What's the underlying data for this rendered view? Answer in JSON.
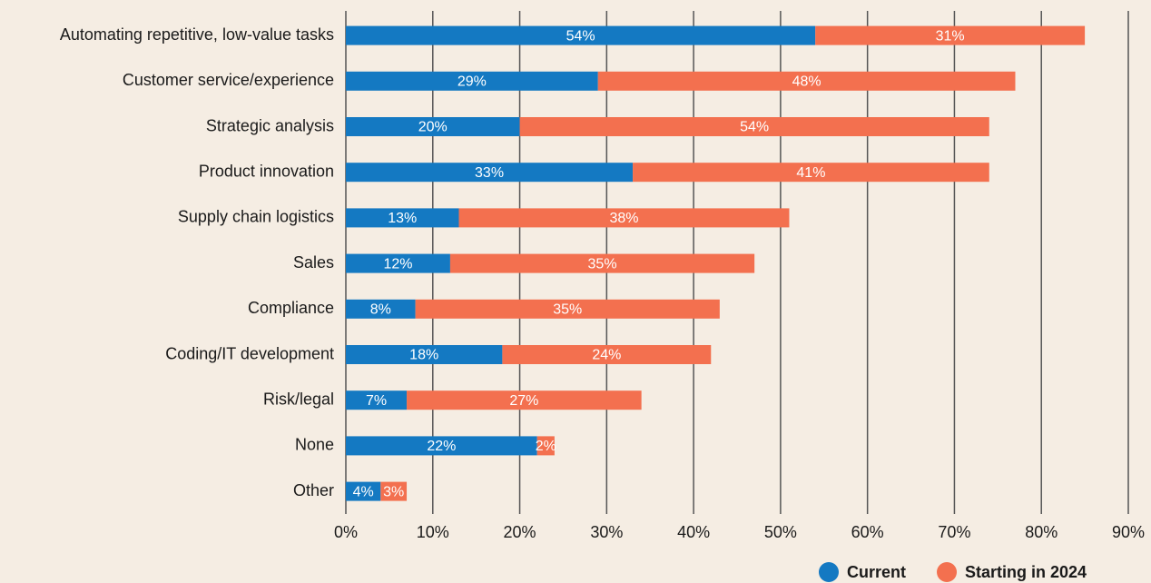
{
  "chart_data": {
    "type": "stacked_bar_horizontal",
    "categories": [
      "Automating repetitive, low-value tasks",
      "Customer service/experience",
      "Strategic analysis",
      "Product innovation",
      "Supply chain logistics",
      "Sales",
      "Compliance",
      "Coding/IT development",
      "Risk/legal",
      "None",
      "Other"
    ],
    "series": [
      {
        "name": "Current",
        "color": "#1479c2",
        "values": [
          54,
          29,
          20,
          33,
          13,
          12,
          8,
          18,
          7,
          22,
          4
        ],
        "value_labels": [
          "54%",
          "29%",
          "20%",
          "33%",
          "13%",
          "12%",
          "8%",
          "18%",
          "7%",
          "22%",
          "4%"
        ]
      },
      {
        "name": "Starting in 2024",
        "color": "#f3704f",
        "values": [
          31,
          48,
          54,
          41,
          38,
          35,
          35,
          24,
          27,
          2,
          3
        ],
        "value_labels": [
          "31%",
          "48%",
          "54%",
          "41%",
          "38%",
          "35%",
          "35%",
          "24%",
          "27%",
          "2%",
          "3%"
        ]
      }
    ],
    "xlim": [
      0,
      90
    ],
    "xticks": [
      {
        "value": 0,
        "label": "0%"
      },
      {
        "value": 10,
        "label": "10%"
      },
      {
        "value": 20,
        "label": "20%"
      },
      {
        "value": 30,
        "label": "30%"
      },
      {
        "value": 40,
        "label": "40%"
      },
      {
        "value": 50,
        "label": "50%"
      },
      {
        "value": 60,
        "label": "60%"
      },
      {
        "value": 70,
        "label": "70%"
      },
      {
        "value": 80,
        "label": "80%"
      },
      {
        "value": 90,
        "label": "90%"
      }
    ],
    "grid": true,
    "legend": "bottom-right"
  }
}
